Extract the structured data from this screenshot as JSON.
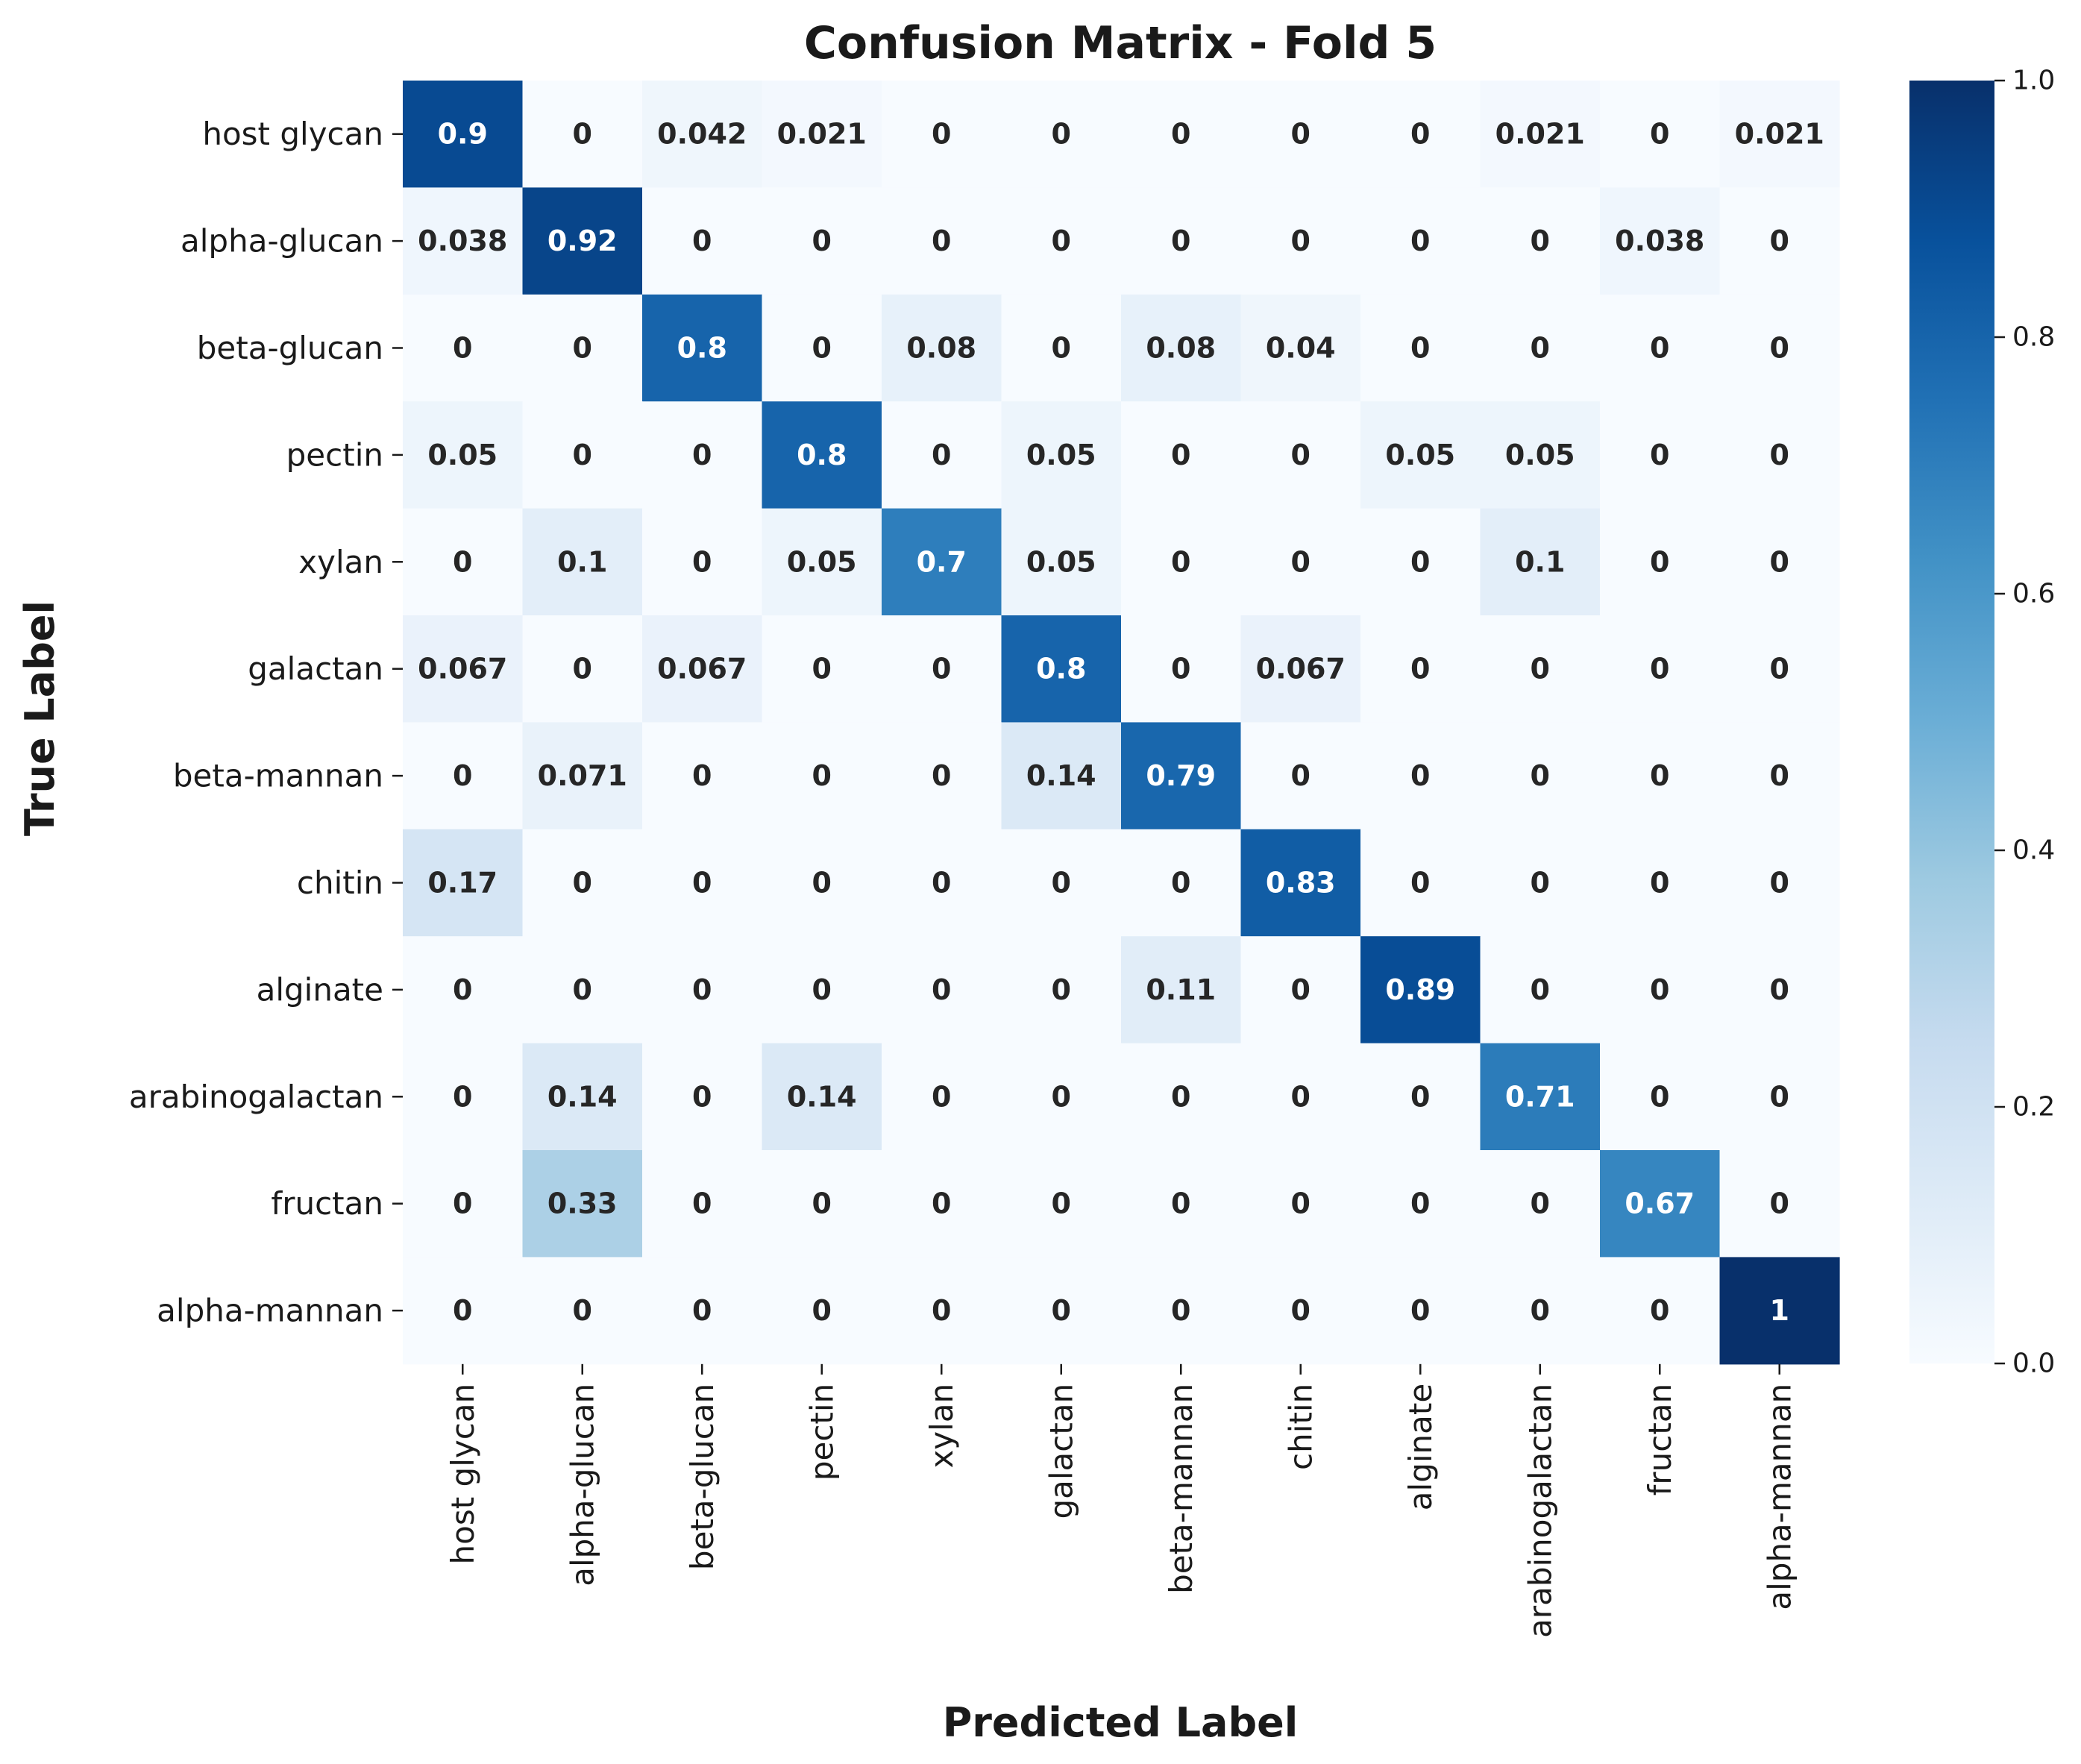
{
  "chart_data": {
    "type": "heatmap",
    "title": "Confusion Matrix - Fold 5",
    "xlabel": "Predicted Label",
    "ylabel": "True Label",
    "x_categories": [
      "host glycan",
      "alpha-glucan",
      "beta-glucan",
      "pectin",
      "xylan",
      "galactan",
      "beta-mannan",
      "chitin",
      "alginate",
      "arabinogalactan",
      "fructan",
      "alpha-mannan"
    ],
    "y_categories": [
      "host glycan",
      "alpha-glucan",
      "beta-glucan",
      "pectin",
      "xylan",
      "galactan",
      "beta-mannan",
      "chitin",
      "alginate",
      "arabinogalactan",
      "fructan",
      "alpha-mannan"
    ],
    "values": [
      [
        0.9,
        0,
        0.042,
        0.021,
        0,
        0,
        0,
        0,
        0,
        0.021,
        0,
        0.021
      ],
      [
        0.038,
        0.92,
        0,
        0,
        0,
        0,
        0,
        0,
        0,
        0,
        0.038,
        0
      ],
      [
        0,
        0,
        0.8,
        0,
        0.08,
        0,
        0.08,
        0.04,
        0,
        0,
        0,
        0
      ],
      [
        0.05,
        0,
        0,
        0.8,
        0,
        0.05,
        0,
        0,
        0.05,
        0.05,
        0,
        0
      ],
      [
        0,
        0.1,
        0,
        0.05,
        0.7,
        0.05,
        0,
        0,
        0,
        0.1,
        0,
        0
      ],
      [
        0.067,
        0,
        0.067,
        0,
        0,
        0.8,
        0,
        0.067,
        0,
        0,
        0,
        0
      ],
      [
        0,
        0.071,
        0,
        0,
        0,
        0.14,
        0.79,
        0,
        0,
        0,
        0,
        0
      ],
      [
        0.17,
        0,
        0,
        0,
        0,
        0,
        0,
        0.83,
        0,
        0,
        0,
        0
      ],
      [
        0,
        0,
        0,
        0,
        0,
        0,
        0.11,
        0,
        0.89,
        0,
        0,
        0
      ],
      [
        0,
        0.14,
        0,
        0.14,
        0,
        0,
        0,
        0,
        0,
        0.71,
        0,
        0
      ],
      [
        0,
        0.33,
        0,
        0,
        0,
        0,
        0,
        0,
        0,
        0,
        0.67,
        0
      ],
      [
        0,
        0,
        0,
        0,
        0,
        0,
        0,
        0,
        0,
        0,
        0,
        1
      ]
    ],
    "colormap": "Blues",
    "vmin": 0,
    "vmax": 1,
    "colorbar_ticks": [
      "0.0",
      "0.2",
      "0.4",
      "0.6",
      "0.8",
      "1.0"
    ],
    "annotations": true,
    "grid": false
  }
}
